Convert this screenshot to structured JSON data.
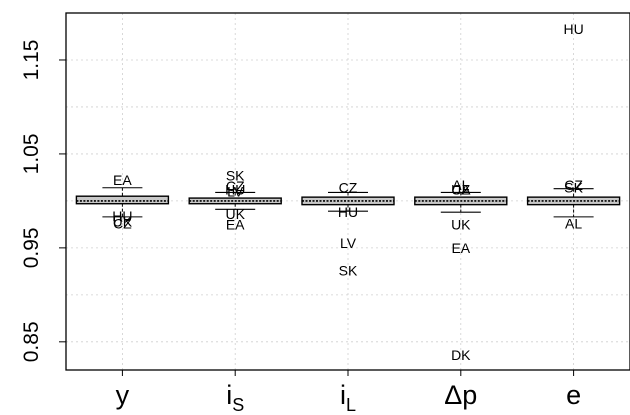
{
  "chart_data": {
    "type": "box",
    "title": "",
    "xlabel": "",
    "ylabel": "",
    "ylim": [
      0.82,
      1.2
    ],
    "yticks": [
      "0.85",
      "0.95",
      "1.05",
      "1.15"
    ],
    "ytick_values": [
      0.85,
      0.95,
      1.05,
      1.15
    ],
    "grid": true,
    "categories": [
      {
        "main": "y",
        "sub": ""
      },
      {
        "main": "i",
        "sub": "S"
      },
      {
        "main": "i",
        "sub": "L"
      },
      {
        "main": "Δp",
        "sub": ""
      },
      {
        "main": "e",
        "sub": ""
      }
    ],
    "boxes": [
      {
        "q1": 0.997,
        "median": 1.0,
        "q3": 1.005,
        "whisker_low": 0.983,
        "whisker_high": 1.014
      },
      {
        "q1": 0.997,
        "median": 1.0,
        "q3": 1.003,
        "whisker_low": 0.991,
        "whisker_high": 1.009
      },
      {
        "q1": 0.996,
        "median": 1.0,
        "q3": 1.004,
        "whisker_low": 0.989,
        "whisker_high": 1.009
      },
      {
        "q1": 0.996,
        "median": 1.0,
        "q3": 1.004,
        "whisker_low": 0.988,
        "whisker_high": 1.009
      },
      {
        "q1": 0.996,
        "median": 1.0,
        "q3": 1.004,
        "whisker_low": 0.983,
        "whisker_high": 1.013
      }
    ],
    "outliers": [
      {
        "cat": 0,
        "label": "EA",
        "y": 1.022
      },
      {
        "cat": 0,
        "label": "HU",
        "y": 0.984
      },
      {
        "cat": 0,
        "label": "UK",
        "y": 0.978
      },
      {
        "cat": 0,
        "label": "CZ",
        "y": 0.976
      },
      {
        "cat": 1,
        "label": "SK",
        "y": 1.027
      },
      {
        "cat": 1,
        "label": "CZ",
        "y": 1.016
      },
      {
        "cat": 1,
        "label": "HU",
        "y": 1.012
      },
      {
        "cat": 1,
        "label": "LV",
        "y": 1.01
      },
      {
        "cat": 1,
        "label": "UK",
        "y": 0.986
      },
      {
        "cat": 1,
        "label": "EA",
        "y": 0.975
      },
      {
        "cat": 2,
        "label": "CZ",
        "y": 1.014
      },
      {
        "cat": 2,
        "label": "HU",
        "y": 0.988
      },
      {
        "cat": 2,
        "label": "LV",
        "y": 0.955
      },
      {
        "cat": 2,
        "label": "SK",
        "y": 0.926
      },
      {
        "cat": 3,
        "label": "AL",
        "y": 1.017
      },
      {
        "cat": 3,
        "label": "CZ",
        "y": 1.012
      },
      {
        "cat": 3,
        "label": "UA",
        "y": 1.012
      },
      {
        "cat": 3,
        "label": "UK",
        "y": 0.975
      },
      {
        "cat": 3,
        "label": "EA",
        "y": 0.95
      },
      {
        "cat": 3,
        "label": "DK",
        "y": 0.836
      },
      {
        "cat": 4,
        "label": "HU",
        "y": 1.183
      },
      {
        "cat": 4,
        "label": "CZ",
        "y": 1.017
      },
      {
        "cat": 4,
        "label": "SK",
        "y": 1.014
      },
      {
        "cat": 4,
        "label": "AL",
        "y": 0.976
      }
    ]
  }
}
